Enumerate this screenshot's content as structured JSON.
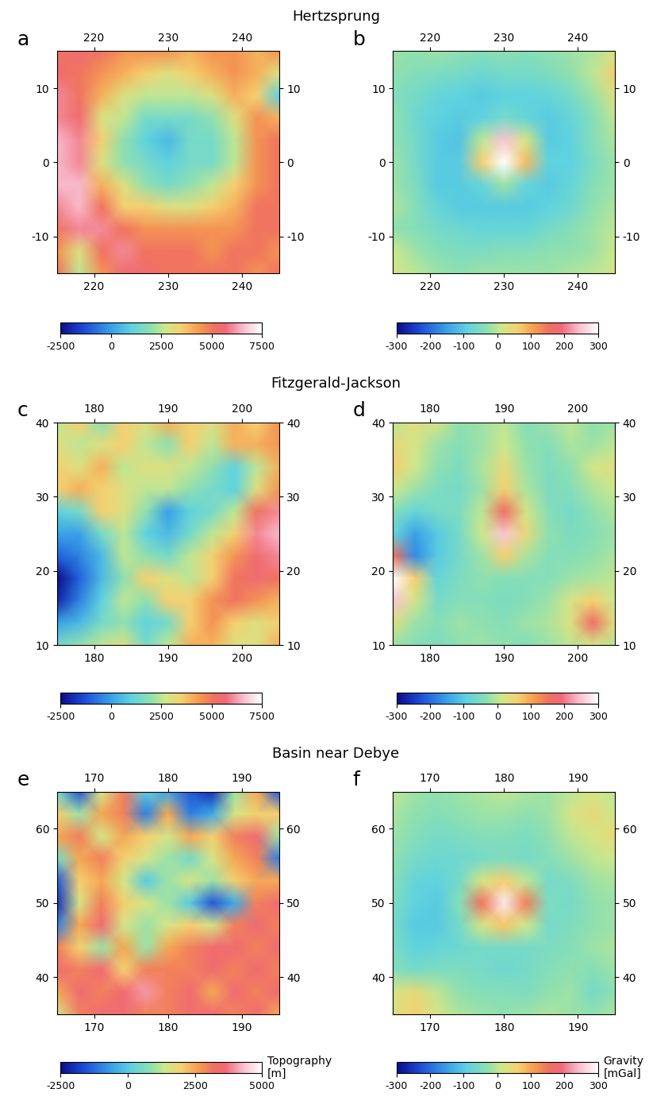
{
  "chart_data": [
    {
      "type": "heatmap",
      "panel_label": "a",
      "title": "Hertzsprung",
      "x": [
        215,
        218,
        221,
        224,
        227,
        230,
        233,
        236,
        239,
        242,
        245
      ],
      "y": [
        15,
        12,
        9,
        6,
        3,
        0,
        -3,
        -6,
        -9,
        -12,
        -15
      ],
      "values": [
        [
          5000,
          5500,
          5000,
          4500,
          4500,
          4500,
          4000,
          4500,
          4500,
          4000,
          4500
        ],
        [
          5500,
          5000,
          4500,
          4000,
          3500,
          3000,
          3500,
          4000,
          4500,
          4000,
          3000
        ],
        [
          6000,
          5000,
          4000,
          3000,
          2500,
          2500,
          2500,
          3000,
          4000,
          3500,
          1000
        ],
        [
          6000,
          5500,
          3000,
          2500,
          1500,
          1500,
          1500,
          2000,
          3000,
          4500,
          4000
        ],
        [
          6500,
          6000,
          3500,
          2000,
          1000,
          500,
          1500,
          1500,
          2500,
          4500,
          5000
        ],
        [
          6500,
          6000,
          3000,
          2000,
          1500,
          1000,
          1500,
          1500,
          2500,
          4500,
          5000
        ],
        [
          6500,
          6500,
          4000,
          3000,
          2000,
          1500,
          2000,
          2500,
          3500,
          4500,
          5000
        ],
        [
          6000,
          6500,
          5000,
          3500,
          3500,
          3000,
          3000,
          3500,
          4000,
          5000,
          5000
        ],
        [
          5000,
          6000,
          6000,
          5000,
          4500,
          4500,
          4500,
          4500,
          4500,
          5000,
          5000
        ],
        [
          4500,
          3000,
          5000,
          6000,
          5000,
          5000,
          5000,
          4500,
          5000,
          5000,
          4500
        ],
        [
          5000,
          2500,
          4500,
          5500,
          5500,
          5000,
          5000,
          5000,
          5000,
          4500,
          5000
        ]
      ],
      "xlim": [
        215,
        245
      ],
      "ylim": [
        -15,
        15
      ],
      "xticks": [
        220,
        230,
        240
      ],
      "yticks": [
        -10,
        0,
        10
      ],
      "colorbar_range": [
        -2500,
        7500
      ],
      "colorbar_ticks": [
        -2500,
        0,
        2500,
        5000,
        7500
      ]
    },
    {
      "type": "heatmap",
      "panel_label": "b",
      "x": [
        215,
        218,
        221,
        224,
        227,
        230,
        233,
        236,
        239,
        242,
        245
      ],
      "y": [
        15,
        12,
        9,
        6,
        3,
        0,
        -3,
        -6,
        -9,
        -12,
        -15
      ],
      "values": [
        [
          -20,
          -30,
          -20,
          -30,
          -40,
          -30,
          -40,
          -30,
          -20,
          -10,
          20
        ],
        [
          -30,
          -40,
          -50,
          -60,
          -70,
          -60,
          -60,
          -50,
          -30,
          0,
          60
        ],
        [
          -40,
          -60,
          -80,
          -90,
          -100,
          -90,
          -90,
          -80,
          -60,
          -20,
          30
        ],
        [
          -30,
          -70,
          -90,
          -100,
          -90,
          -60,
          -80,
          -100,
          -80,
          -40,
          0
        ],
        [
          -30,
          -60,
          -100,
          -110,
          0,
          250,
          20,
          -100,
          -90,
          -40,
          -10
        ],
        [
          -20,
          -60,
          -100,
          -100,
          60,
          320,
          80,
          -90,
          -90,
          -50,
          -20
        ],
        [
          -20,
          -50,
          -100,
          -100,
          -80,
          -20,
          -80,
          -100,
          -80,
          -40,
          -20
        ],
        [
          -10,
          -40,
          -80,
          -100,
          -100,
          -100,
          -100,
          -90,
          -70,
          -30,
          -10
        ],
        [
          -30,
          -40,
          -60,
          -70,
          -80,
          -80,
          -80,
          -60,
          -40,
          -20,
          0
        ],
        [
          10,
          -20,
          -40,
          -50,
          -50,
          -40,
          -40,
          -30,
          -30,
          -20,
          10
        ],
        [
          20,
          0,
          -20,
          -30,
          -20,
          -20,
          -20,
          -20,
          -10,
          0,
          20
        ]
      ],
      "xlim": [
        215,
        245
      ],
      "ylim": [
        -15,
        15
      ],
      "xticks": [
        220,
        230,
        240
      ],
      "yticks": [
        -10,
        0,
        10
      ],
      "colorbar_range": [
        -300,
        300
      ],
      "colorbar_ticks": [
        -300,
        -200,
        -100,
        0,
        100,
        200,
        300
      ]
    },
    {
      "type": "heatmap",
      "panel_label": "c",
      "title": "Fitzgerald-Jackson",
      "x": [
        175,
        178,
        181,
        184,
        187,
        190,
        193,
        196,
        199,
        202,
        205
      ],
      "y": [
        40,
        37,
        34,
        31,
        28,
        25,
        22,
        19,
        16,
        13,
        10
      ],
      "values": [
        [
          2500,
          3500,
          2000,
          3500,
          3000,
          4000,
          3500,
          3000,
          4000,
          3500,
          4500
        ],
        [
          3000,
          2500,
          3000,
          3500,
          2500,
          2000,
          3500,
          2500,
          4000,
          4000,
          4500
        ],
        [
          3500,
          3000,
          4000,
          2500,
          3000,
          3000,
          2500,
          2000,
          1000,
          2500,
          4000
        ],
        [
          3500,
          4000,
          3500,
          3000,
          2500,
          2500,
          2000,
          1500,
          1000,
          3000,
          4500
        ],
        [
          1000,
          1500,
          3500,
          3000,
          2000,
          0,
          1000,
          1500,
          2500,
          5000,
          6000
        ],
        [
          0,
          0,
          1500,
          2500,
          1000,
          500,
          1500,
          2500,
          3500,
          6000,
          6500
        ],
        [
          -1000,
          -500,
          500,
          2500,
          2000,
          1500,
          2500,
          3500,
          4500,
          5500,
          6000
        ],
        [
          -2500,
          -1000,
          500,
          2000,
          3500,
          3000,
          2500,
          3500,
          5000,
          5500,
          5000
        ],
        [
          -2000,
          -500,
          1000,
          2500,
          2000,
          3500,
          3500,
          4500,
          5000,
          4500,
          4000
        ],
        [
          0,
          500,
          1500,
          2000,
          1000,
          1500,
          3500,
          4500,
          3500,
          3000,
          3500
        ],
        [
          1500,
          2000,
          2500,
          3000,
          1500,
          2500,
          4000,
          4000,
          3000,
          3000,
          4000
        ]
      ],
      "xlim": [
        175,
        205
      ],
      "ylim": [
        10,
        40
      ],
      "xticks": [
        180,
        190,
        200
      ],
      "yticks": [
        10,
        20,
        30,
        40
      ],
      "colorbar_range": [
        -2500,
        7500
      ],
      "colorbar_ticks": [
        -2500,
        0,
        2500,
        5000,
        7500
      ]
    },
    {
      "type": "heatmap",
      "panel_label": "d",
      "x": [
        175,
        178,
        181,
        184,
        187,
        190,
        193,
        196,
        199,
        202,
        205
      ],
      "y": [
        40,
        37,
        34,
        31,
        28,
        25,
        22,
        19,
        16,
        13,
        10
      ],
      "values": [
        [
          0,
          30,
          20,
          -30,
          -20,
          0,
          -40,
          -20,
          0,
          -30,
          -20
        ],
        [
          40,
          20,
          -20,
          -40,
          -20,
          10,
          -30,
          -40,
          -10,
          -20,
          0
        ],
        [
          60,
          10,
          -30,
          -50,
          -10,
          40,
          -20,
          -50,
          -30,
          20,
          30
        ],
        [
          10,
          -20,
          -50,
          -60,
          -20,
          60,
          -10,
          -50,
          -40,
          -10,
          10
        ],
        [
          -40,
          -80,
          -60,
          -50,
          0,
          160,
          20,
          -40,
          -60,
          -30,
          -10
        ],
        [
          -80,
          -150,
          -100,
          -60,
          10,
          250,
          40,
          -30,
          -50,
          -40,
          -20
        ],
        [
          150,
          -170,
          -100,
          -60,
          -20,
          60,
          -10,
          -40,
          -40,
          -30,
          -10
        ],
        [
          330,
          60,
          -80,
          -50,
          -30,
          -40,
          -40,
          -40,
          -20,
          -10,
          0
        ],
        [
          250,
          20,
          -60,
          -40,
          -40,
          -50,
          -40,
          -20,
          20,
          60,
          10
        ],
        [
          30,
          -20,
          -40,
          -20,
          -30,
          -40,
          -20,
          -10,
          30,
          160,
          30
        ],
        [
          -20,
          -40,
          -50,
          -30,
          -20,
          -30,
          -40,
          -20,
          0,
          20,
          0
        ]
      ],
      "xlim": [
        175,
        205
      ],
      "ylim": [
        10,
        40
      ],
      "xticks": [
        180,
        190,
        200
      ],
      "yticks": [
        10,
        20,
        30,
        40
      ],
      "colorbar_range": [
        -300,
        300
      ],
      "colorbar_ticks": [
        -300,
        -200,
        -100,
        0,
        100,
        200,
        300
      ]
    },
    {
      "type": "heatmap",
      "panel_label": "e",
      "title": "Basin near Debye",
      "x": [
        165,
        168,
        171,
        174,
        177,
        180,
        183,
        186,
        189,
        192,
        195
      ],
      "y": [
        65,
        62,
        59,
        56,
        53,
        50,
        47,
        44,
        41,
        38,
        35
      ],
      "values": [
        [
          500,
          -1500,
          1500,
          3000,
          0,
          -500,
          -1500,
          -2000,
          1000,
          2500,
          -1500
        ],
        [
          2000,
          1000,
          2500,
          3000,
          -1000,
          2500,
          -1000,
          -500,
          1500,
          2000,
          2000
        ],
        [
          2500,
          3000,
          1500,
          2500,
          2000,
          1500,
          2500,
          2000,
          3000,
          3500,
          1000
        ],
        [
          500,
          2500,
          3000,
          2000,
          1500,
          1000,
          500,
          1500,
          2500,
          3000,
          -1000
        ],
        [
          -1500,
          2000,
          2500,
          1500,
          0,
          1000,
          1500,
          1000,
          2000,
          2500,
          2500
        ],
        [
          -2000,
          1500,
          3000,
          2000,
          1500,
          1000,
          0,
          -1500,
          -500,
          3000,
          3500
        ],
        [
          -1000,
          2500,
          3500,
          1500,
          1000,
          1500,
          2000,
          1500,
          3000,
          3500,
          3000
        ],
        [
          3000,
          2000,
          1000,
          2500,
          1000,
          2500,
          3000,
          3500,
          3500,
          3000,
          3500
        ],
        [
          3500,
          3000,
          3500,
          2000,
          3000,
          3000,
          3000,
          3500,
          3000,
          3500,
          3000
        ],
        [
          2500,
          3500,
          3000,
          3500,
          4000,
          3000,
          3500,
          2500,
          3500,
          3000,
          3500
        ],
        [
          1500,
          3000,
          3500,
          3500,
          3000,
          3000,
          3500,
          3500,
          3000,
          3500,
          2500
        ]
      ],
      "xlim": [
        165,
        195
      ],
      "ylim": [
        35,
        65
      ],
      "xticks": [
        170,
        180,
        190
      ],
      "yticks": [
        40,
        50,
        60
      ],
      "colorbar_range": [
        -2500,
        5000
      ],
      "colorbar_ticks": [
        -2500,
        0,
        2500,
        5000
      ],
      "colorbar_label": [
        "Topography",
        "[m]"
      ]
    },
    {
      "type": "heatmap",
      "panel_label": "f",
      "x": [
        165,
        168,
        171,
        174,
        177,
        180,
        183,
        186,
        189,
        192,
        195
      ],
      "y": [
        65,
        62,
        59,
        56,
        53,
        50,
        47,
        44,
        41,
        38,
        35
      ],
      "values": [
        [
          0,
          -20,
          -30,
          -20,
          -10,
          0,
          -10,
          -20,
          0,
          20,
          0
        ],
        [
          -10,
          -30,
          -40,
          -30,
          -20,
          -20,
          -30,
          -20,
          20,
          40,
          10
        ],
        [
          -20,
          -40,
          -60,
          -50,
          -40,
          -40,
          -50,
          -30,
          0,
          20,
          40
        ],
        [
          -30,
          -60,
          -70,
          -70,
          -60,
          -50,
          -60,
          -40,
          -20,
          0,
          10
        ],
        [
          -40,
          -80,
          -90,
          -60,
          20,
          60,
          0,
          -60,
          -50,
          -20,
          -10
        ],
        [
          -50,
          -90,
          -100,
          -40,
          150,
          280,
          140,
          -50,
          -60,
          -30,
          -20
        ],
        [
          -60,
          -100,
          -100,
          -60,
          20,
          70,
          10,
          -60,
          -50,
          -30,
          -20
        ],
        [
          -50,
          -90,
          -80,
          -70,
          -60,
          -60,
          -60,
          -50,
          -40,
          -20,
          -10
        ],
        [
          -40,
          -60,
          -50,
          -50,
          -60,
          -70,
          -60,
          -40,
          -30,
          -40,
          -20
        ],
        [
          20,
          40,
          0,
          -30,
          -40,
          -40,
          -50,
          -30,
          -20,
          -60,
          -30
        ],
        [
          30,
          60,
          20,
          -10,
          -20,
          -30,
          -20,
          -10,
          -20,
          -30,
          -10
        ]
      ],
      "xlim": [
        165,
        195
      ],
      "ylim": [
        35,
        65
      ],
      "xticks": [
        170,
        180,
        190
      ],
      "yticks": [
        40,
        50,
        60
      ],
      "colorbar_range": [
        -300,
        300
      ],
      "colorbar_ticks": [
        -300,
        -200,
        -100,
        0,
        100,
        200,
        300
      ],
      "colorbar_label": [
        "Gravity",
        "[mGal]"
      ]
    }
  ]
}
